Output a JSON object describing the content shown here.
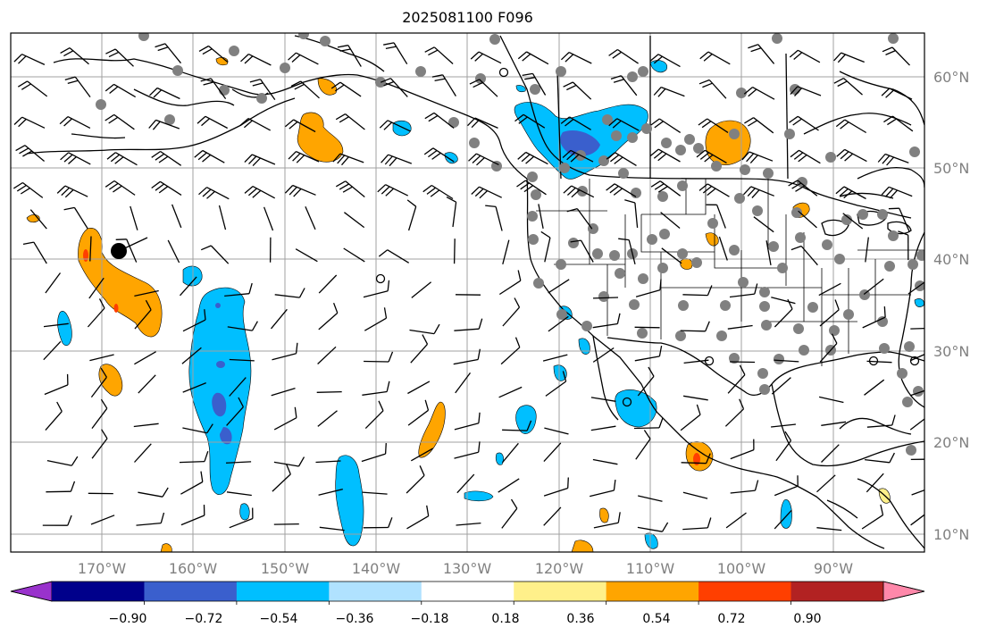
{
  "title": "2025081100 F096",
  "map": {
    "projection": "PlateCarree",
    "lon_range": [
      -180,
      -80
    ],
    "lat_range": [
      8,
      65
    ],
    "gridlines": true,
    "lon_ticks": [
      "170°W",
      "160°W",
      "150°W",
      "140°W",
      "130°W",
      "120°W",
      "110°W",
      "100°W",
      "90°W"
    ],
    "lat_ticks": [
      "60°N",
      "50°N",
      "40°N",
      "30°N",
      "20°N",
      "10°N"
    ],
    "land_outline_color": "#000000",
    "station_marker_color": "#808080",
    "wind_barb_color": "#000000"
  },
  "colorbar": {
    "levels": [
      "−0.90",
      "−0.72",
      "−0.54",
      "−0.36",
      "−0.18",
      "0.18",
      "0.36",
      "0.54",
      "0.72",
      "0.90"
    ],
    "colors": [
      "#9932cc",
      "#00008b",
      "#3a5fcd",
      "#00bfff",
      "#b0e2ff",
      "#ffffff",
      "#fff08a",
      "#ffa500",
      "#ff3f00",
      "#b22222",
      "#ff88aa"
    ],
    "extend": "both"
  },
  "shaded_regions": [
    {
      "category": "0.36",
      "color": "#ffa500",
      "lon": -165,
      "lat": 39
    },
    {
      "category": "-0.36",
      "color": "#00bfff",
      "lon": -154,
      "lat": 27
    },
    {
      "category": "-0.36",
      "color": "#00bfff",
      "lon": -119,
      "lat": 52
    },
    {
      "category": "0.36",
      "color": "#ffa500",
      "lon": -104,
      "lat": 52
    },
    {
      "category": "0.36",
      "color": "#ffa500",
      "lon": -146,
      "lat": 54
    }
  ]
}
